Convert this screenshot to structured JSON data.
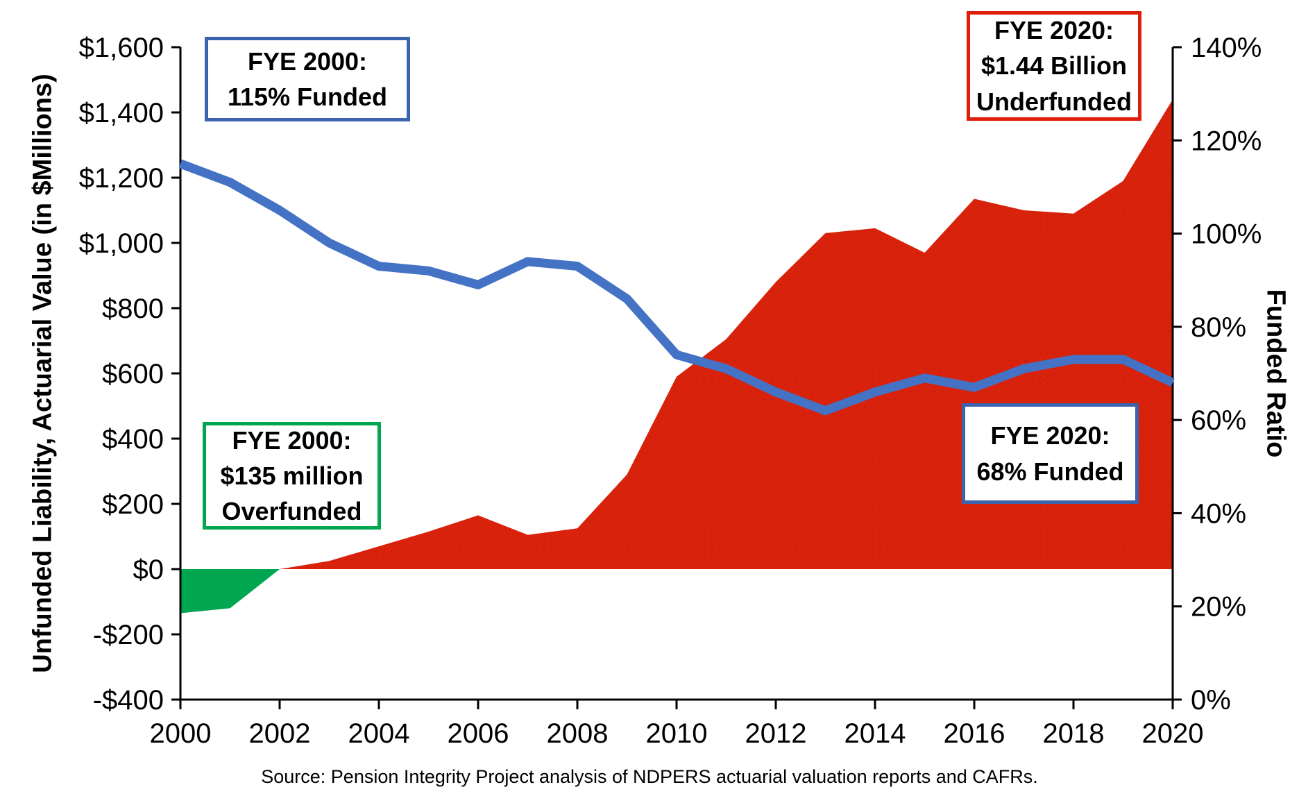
{
  "chart_data": {
    "type": "area",
    "title": "",
    "x": [
      2000,
      2001,
      2002,
      2003,
      2004,
      2005,
      2006,
      2007,
      2008,
      2009,
      2010,
      2011,
      2012,
      2013,
      2014,
      2015,
      2016,
      2017,
      2018,
      2019,
      2020
    ],
    "series": [
      {
        "name": "Unfunded Liability, Actuarial Value (in $Millions)",
        "kind": "area",
        "axis": "left",
        "values": [
          -135,
          -120,
          0,
          25,
          70,
          115,
          165,
          105,
          125,
          290,
          590,
          705,
          880,
          1030,
          1045,
          970,
          1135,
          1100,
          1090,
          1190,
          1440
        ],
        "positive_color": "#D9220B",
        "negative_color": "#00A650"
      },
      {
        "name": "Funded Ratio",
        "kind": "line",
        "axis": "right",
        "values": [
          115,
          111,
          105,
          98,
          93,
          92,
          89,
          94,
          93,
          86,
          74,
          71,
          66,
          62,
          66,
          69,
          67,
          71,
          73,
          73,
          68
        ],
        "color": "#4472C4",
        "width": 13
      }
    ],
    "left_axis": {
      "label": "Unfunded Liability, Actuarial Value  (in $Millions)",
      "min": -400,
      "max": 1600,
      "step": 200,
      "tick_format": "usd"
    },
    "right_axis": {
      "label": "Funded Ratio",
      "min": 0,
      "max": 140,
      "step": 20,
      "tick_format": "percent"
    },
    "x_axis": {
      "min": 2000,
      "max": 2020,
      "tick_step": 2
    },
    "grid": "off",
    "legend": "none"
  },
  "annotations": [
    {
      "lines": [
        "FYE 2000:",
        "115% Funded",
        ""
      ],
      "border_color": "#3C64AE"
    },
    {
      "lines": [
        "FYE 2020:",
        "$1.44 Billion",
        "Underfunded"
      ],
      "border_color": "#DF1E09"
    },
    {
      "lines": [
        "FYE 2000:",
        "$135 million",
        "Overfunded"
      ],
      "border_color": "#00A650"
    },
    {
      "lines": [
        "FYE 2020:",
        "68% Funded",
        ""
      ],
      "border_color": "#3C64AE"
    }
  ],
  "source_note": "Source: Pension Integrity Project analysis of NDPERS actuarial valuation reports and CAFRs."
}
